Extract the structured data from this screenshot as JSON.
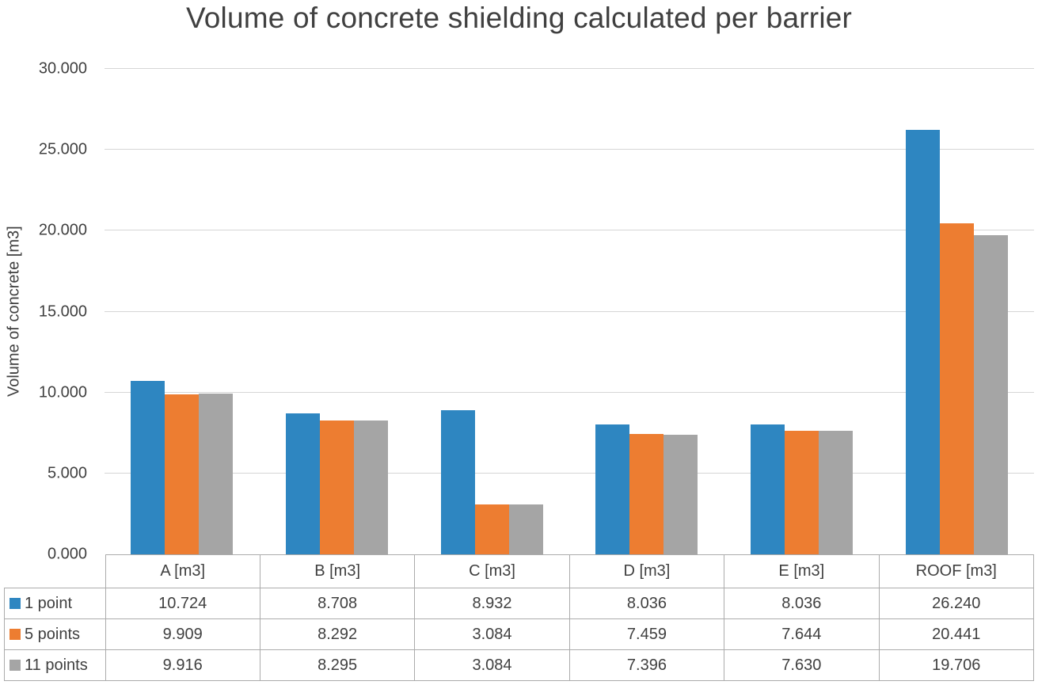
{
  "chart_data": {
    "type": "bar",
    "title": "Volume of concrete shielding calculated per barrier",
    "ylabel": "Volume of concrete [m3]",
    "xlabel": "",
    "ylim": [
      0,
      30
    ],
    "grid": true,
    "gridline_color": "#d6d6d6",
    "legend_position": "data-table-left",
    "yticks": [
      {
        "value": 0,
        "label": "0.000"
      },
      {
        "value": 5,
        "label": "5.000"
      },
      {
        "value": 10,
        "label": "10.000"
      },
      {
        "value": 15,
        "label": "15.000"
      },
      {
        "value": 20,
        "label": "20.000"
      },
      {
        "value": 25,
        "label": "25.000"
      },
      {
        "value": 30,
        "label": "30.000"
      }
    ],
    "categories": [
      "A [m3]",
      "B [m3]",
      "C [m3]",
      "D [m3]",
      "E [m3]",
      "ROOF [m3]"
    ],
    "series": [
      {
        "name": "1 point",
        "color": "#2e86c1",
        "values": [
          10.724,
          8.708,
          8.932,
          8.036,
          8.036,
          26.24
        ],
        "display": [
          "10.724",
          "8.708",
          "8.932",
          "8.036",
          "8.036",
          "26.240"
        ]
      },
      {
        "name": "5 points",
        "color": "#ed7d31",
        "values": [
          9.909,
          8.292,
          3.084,
          7.459,
          7.644,
          20.441
        ],
        "display": [
          "9.909",
          "8.292",
          "3.084",
          "7.459",
          "7.644",
          "20.441"
        ]
      },
      {
        "name": "11 points",
        "color": "#a5a5a5",
        "values": [
          9.916,
          8.295,
          3.084,
          7.396,
          7.63,
          19.706
        ],
        "display": [
          "9.916",
          "8.295",
          "3.084",
          "7.396",
          "7.630",
          "19.706"
        ]
      }
    ]
  }
}
